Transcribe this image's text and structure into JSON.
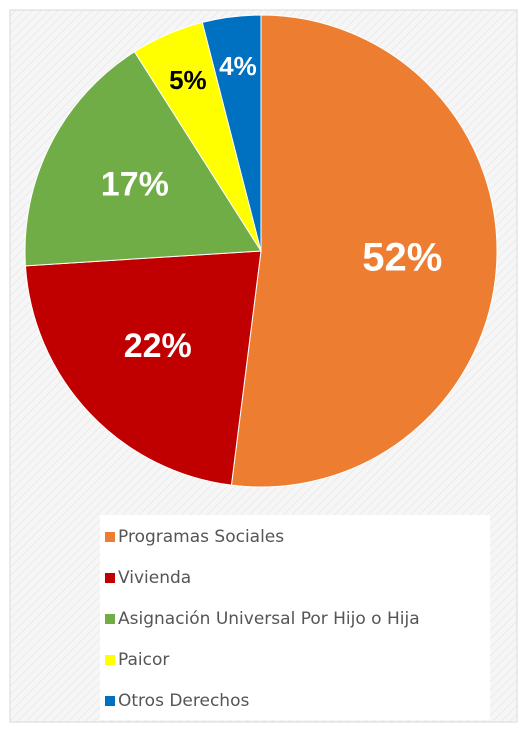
{
  "chart_data": {
    "type": "pie",
    "categories": [
      "Programas Sociales",
      "Vivienda",
      "Asignación Universal Por Hijo o Hija",
      "Paicor",
      "Otros Derechos"
    ],
    "values": [
      52,
      22,
      17,
      5,
      4
    ],
    "value_labels": [
      "52%",
      "22%",
      "17%",
      "5%",
      "4%"
    ],
    "colors": [
      "#ed7d31",
      "#c00000",
      "#70ad47",
      "#ffff00",
      "#0070c0"
    ],
    "legend": "bottom"
  }
}
